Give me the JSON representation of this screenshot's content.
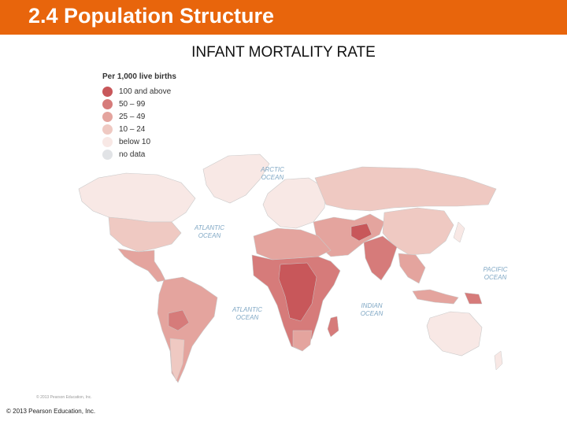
{
  "header": {
    "title": "2.4 Population Structure"
  },
  "map": {
    "subtitle": "INFANT MORTALITY RATE",
    "legend": {
      "title": "Per 1,000 live births",
      "items": [
        {
          "label": "100 and above",
          "color": "#c8575a"
        },
        {
          "label": "50 – 99",
          "color": "#d67b7a"
        },
        {
          "label": "25 – 49",
          "color": "#e4a49e"
        },
        {
          "label": "10 – 24",
          "color": "#efc9c2"
        },
        {
          "label": "below 10",
          "color": "#f8e8e5"
        },
        {
          "label": "no data",
          "color": "#e1e3e6"
        }
      ]
    },
    "oceans": {
      "arctic": [
        "ARCTIC",
        "OCEAN"
      ],
      "atlantic_north": [
        "ATLANTIC",
        "OCEAN"
      ],
      "atlantic_south": [
        "ATLANTIC",
        "OCEAN"
      ],
      "indian": [
        "INDIAN",
        "OCEAN"
      ],
      "pacific": [
        "PACIFIC",
        "OCEAN"
      ]
    },
    "map_credit": "© 2013 Pearson Education, Inc."
  },
  "footer": {
    "copyright": "© 2013 Pearson Education, Inc."
  }
}
